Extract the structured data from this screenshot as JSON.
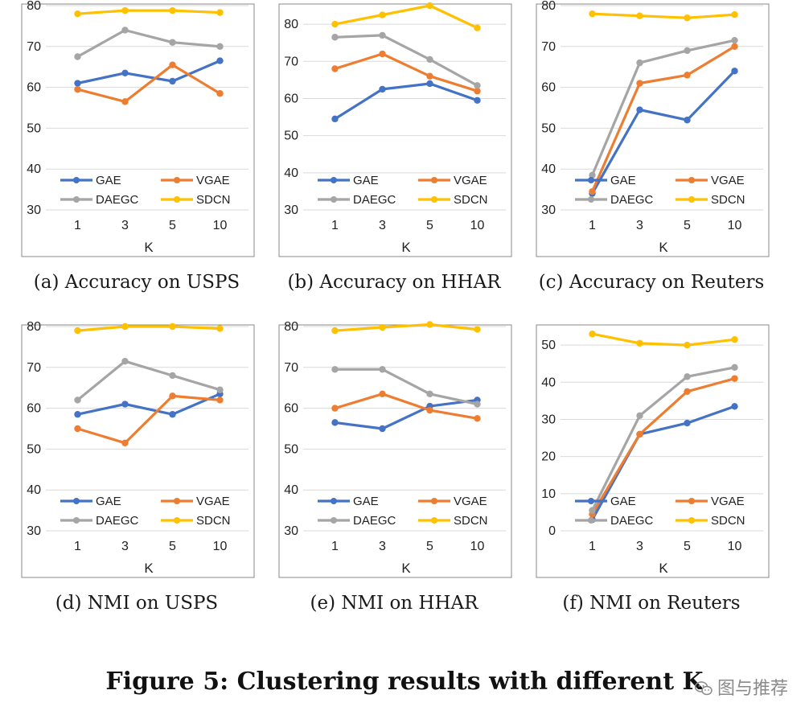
{
  "figure": {
    "caption": "Figure 5: Clustering results with different K"
  },
  "watermark": {
    "text": "图与推荐"
  },
  "colors": {
    "GAE": "#4472c4",
    "VGAE": "#ed7d31",
    "DAEGC": "#a5a5a5",
    "SDCN": "#ffc000",
    "grid": "#d9d9d9",
    "axis": "#888888"
  },
  "chart_data": [
    {
      "type": "line",
      "caption": "(a)  Accuracy on USPS",
      "xlabel": "K",
      "categories": [
        "1",
        "3",
        "5",
        "10"
      ],
      "ylim": [
        30,
        80
      ],
      "yticks": [
        30,
        40,
        50,
        60,
        70,
        80
      ],
      "grid": true,
      "legend": "bottom",
      "series": [
        {
          "name": "GAE",
          "values": [
            61,
            63.5,
            61.5,
            66.5
          ]
        },
        {
          "name": "VGAE",
          "values": [
            59.5,
            56.5,
            65.5,
            58.5
          ]
        },
        {
          "name": "DAEGC",
          "values": [
            67.5,
            74,
            71,
            70
          ]
        },
        {
          "name": "SDCN",
          "values": [
            78,
            78.8,
            78.8,
            78.3
          ]
        }
      ]
    },
    {
      "type": "line",
      "caption": "(b)  Accuracy on HHAR",
      "xlabel": "K",
      "categories": [
        "1",
        "3",
        "5",
        "10"
      ],
      "ylim": [
        30,
        85
      ],
      "yticks": [
        30,
        40,
        50,
        60,
        70,
        80
      ],
      "grid": true,
      "legend": "bottom",
      "series": [
        {
          "name": "GAE",
          "values": [
            54.5,
            62.5,
            64,
            59.5
          ]
        },
        {
          "name": "VGAE",
          "values": [
            68,
            72,
            66,
            62
          ]
        },
        {
          "name": "DAEGC",
          "values": [
            76.5,
            77,
            70.5,
            63.5
          ]
        },
        {
          "name": "SDCN",
          "values": [
            80,
            82.5,
            85,
            79
          ]
        }
      ]
    },
    {
      "type": "line",
      "caption": "(c)  Accuracy on Reuters",
      "xlabel": "K",
      "categories": [
        "1",
        "3",
        "5",
        "10"
      ],
      "ylim": [
        30,
        80
      ],
      "yticks": [
        30,
        40,
        50,
        60,
        70,
        80
      ],
      "grid": true,
      "legend": "bottom",
      "series": [
        {
          "name": "GAE",
          "values": [
            34,
            54.5,
            52,
            64
          ]
        },
        {
          "name": "VGAE",
          "values": [
            34.5,
            61,
            63,
            70
          ]
        },
        {
          "name": "DAEGC",
          "values": [
            38.5,
            66,
            69,
            71.5
          ]
        },
        {
          "name": "SDCN",
          "values": [
            78,
            77.5,
            77,
            77.8
          ]
        }
      ]
    },
    {
      "type": "line",
      "caption": "(d)  NMI on USPS",
      "xlabel": "K",
      "categories": [
        "1",
        "3",
        "5",
        "10"
      ],
      "ylim": [
        30,
        80
      ],
      "yticks": [
        30,
        40,
        50,
        60,
        70,
        80
      ],
      "grid": true,
      "legend": "bottom",
      "series": [
        {
          "name": "GAE",
          "values": [
            58.5,
            61,
            58.5,
            63.5
          ]
        },
        {
          "name": "VGAE",
          "values": [
            55,
            51.5,
            63,
            62
          ]
        },
        {
          "name": "DAEGC",
          "values": [
            62,
            71.5,
            68,
            64.5
          ]
        },
        {
          "name": "SDCN",
          "values": [
            79,
            80,
            80,
            79.5
          ]
        }
      ]
    },
    {
      "type": "line",
      "caption": "(e)  NMI on HHAR",
      "xlabel": "K",
      "categories": [
        "1",
        "3",
        "5",
        "10"
      ],
      "ylim": [
        30,
        80
      ],
      "yticks": [
        30,
        40,
        50,
        60,
        70,
        80
      ],
      "grid": true,
      "legend": "bottom",
      "series": [
        {
          "name": "GAE",
          "values": [
            56.5,
            55,
            60.5,
            62
          ]
        },
        {
          "name": "VGAE",
          "values": [
            60,
            63.5,
            59.5,
            57.5
          ]
        },
        {
          "name": "DAEGC",
          "values": [
            69.5,
            69.5,
            63.5,
            61
          ]
        },
        {
          "name": "SDCN",
          "values": [
            79,
            79.8,
            80.5,
            79.3
          ]
        }
      ]
    },
    {
      "type": "line",
      "caption": "(f)  NMI on Reuters",
      "xlabel": "K",
      "categories": [
        "1",
        "3",
        "5",
        "10"
      ],
      "ylim": [
        0,
        55
      ],
      "yticks": [
        0,
        10,
        20,
        30,
        40,
        50
      ],
      "grid": true,
      "legend": "bottom",
      "series": [
        {
          "name": "GAE",
          "values": [
            3,
            26,
            29,
            33.5
          ]
        },
        {
          "name": "VGAE",
          "values": [
            4.5,
            26,
            37.5,
            41
          ]
        },
        {
          "name": "DAEGC",
          "values": [
            5.5,
            31,
            41.5,
            44
          ]
        },
        {
          "name": "SDCN",
          "values": [
            53,
            50.5,
            50,
            51.5
          ]
        }
      ]
    }
  ]
}
